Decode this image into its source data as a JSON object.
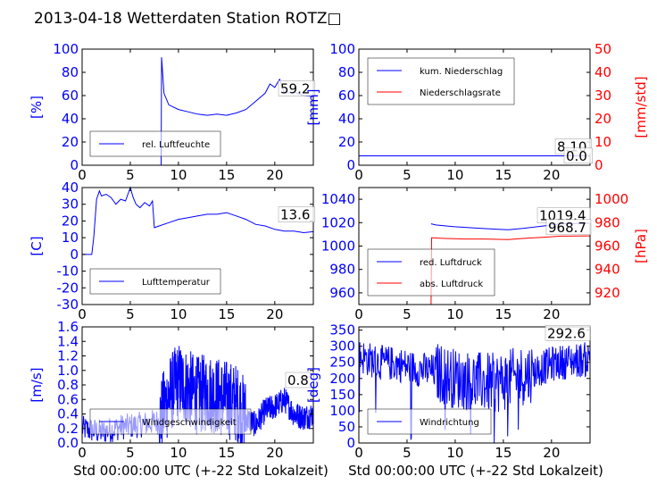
{
  "title": "2013-04-18 Wetterdaten Station ROTZ□",
  "x_label": "Std 00:00:00 UTC (+-22 Std Lokalzeit)",
  "colors": {
    "blue": "#0000ff",
    "red": "#ff0000",
    "black": "#000000"
  },
  "chart_data": [
    {
      "type": "line",
      "panel": "humidity",
      "ylabel": "[%]",
      "xlim": [
        0,
        24
      ],
      "ylim": [
        0,
        100
      ],
      "xticks": [
        0,
        5,
        10,
        15,
        20
      ],
      "yticks": [
        0,
        20,
        40,
        60,
        80,
        100
      ],
      "legend": [
        "rel. Luftfeuchte"
      ],
      "legend_position": "lower-left",
      "value_box": "59.2",
      "series": [
        {
          "name": "rel. Luftfeuchte",
          "color": "blue",
          "points": [
            [
              0,
              0
            ],
            [
              8.2,
              0
            ],
            [
              8.2,
              0
            ],
            [
              8.25,
              93
            ],
            [
              8.5,
              62
            ],
            [
              9,
              52
            ],
            [
              10,
              48
            ],
            [
              11,
              46
            ],
            [
              12,
              44
            ],
            [
              13,
              43
            ],
            [
              14,
              44
            ],
            [
              15,
              43
            ],
            [
              16,
              45
            ],
            [
              17,
              48
            ],
            [
              18,
              55
            ],
            [
              19,
              62
            ],
            [
              19.5,
              70
            ],
            [
              20,
              67
            ],
            [
              20.5,
              74
            ],
            [
              21,
              62
            ],
            [
              22,
              63
            ],
            [
              23,
              60
            ],
            [
              24,
              59.2
            ]
          ]
        }
      ]
    },
    {
      "type": "line",
      "panel": "precipitation",
      "ylabel": "[mm]",
      "ylabel_right": "[mm/std]",
      "xlim": [
        0,
        24
      ],
      "ylim": [
        0,
        100
      ],
      "ylim_right": [
        0,
        50
      ],
      "xticks": [
        0,
        5,
        10,
        15,
        20
      ],
      "yticks": [
        0,
        20,
        40,
        60,
        80,
        100
      ],
      "yticks_right": [
        0,
        10,
        20,
        30,
        40,
        50
      ],
      "legend": [
        "kum. Niederschlag",
        "Niederschlagsrate"
      ],
      "legend_position": "upper-left",
      "value_boxes": [
        "8.10",
        "0.0"
      ],
      "series": [
        {
          "name": "kum. Niederschlag",
          "color": "blue",
          "points": [
            [
              0,
              8.1
            ],
            [
              24,
              8.1
            ]
          ]
        },
        {
          "name": "Niederschlagsrate",
          "color": "red",
          "axis": "right",
          "points": [
            [
              0,
              0
            ],
            [
              24,
              0
            ]
          ]
        }
      ]
    },
    {
      "type": "line",
      "panel": "temperature",
      "ylabel": "[C]",
      "xlim": [
        0,
        24
      ],
      "ylim": [
        -30,
        40
      ],
      "xticks": [
        0,
        5,
        10,
        15,
        20
      ],
      "yticks": [
        -30,
        -20,
        -10,
        0,
        10,
        20,
        30,
        40
      ],
      "legend": [
        "Lufttemperatur"
      ],
      "legend_position": "lower-left",
      "value_box": "13.6",
      "series": [
        {
          "name": "Lufttemperatur",
          "color": "blue",
          "points": [
            [
              0,
              0
            ],
            [
              1,
              0
            ],
            [
              1.2,
              10
            ],
            [
              1.5,
              33
            ],
            [
              1.8,
              38
            ],
            [
              2,
              35
            ],
            [
              2.5,
              36
            ],
            [
              3,
              34
            ],
            [
              3.5,
              30
            ],
            [
              4,
              33
            ],
            [
              4.5,
              32
            ],
            [
              5,
              40
            ],
            [
              5.3,
              34
            ],
            [
              5.6,
              30
            ],
            [
              6,
              28
            ],
            [
              6.5,
              31
            ],
            [
              7,
              29
            ],
            [
              7.3,
              32
            ],
            [
              7.5,
              16
            ],
            [
              8,
              17
            ],
            [
              9,
              19
            ],
            [
              10,
              21
            ],
            [
              11,
              22
            ],
            [
              12,
              23
            ],
            [
              13,
              24
            ],
            [
              14,
              24
            ],
            [
              15,
              25
            ],
            [
              16,
              23
            ],
            [
              17,
              21
            ],
            [
              18,
              18
            ],
            [
              19,
              17
            ],
            [
              20,
              15
            ],
            [
              21,
              14
            ],
            [
              22,
              14
            ],
            [
              23,
              13
            ],
            [
              24,
              13.6
            ]
          ]
        }
      ]
    },
    {
      "type": "line",
      "panel": "pressure",
      "ylabel_right": "[hPa]",
      "xlim": [
        0,
        24
      ],
      "ylim": [
        950,
        1050
      ],
      "ylim_right": [
        910,
        1010
      ],
      "xticks": [
        0,
        5,
        10,
        15,
        20
      ],
      "yticks": [
        960,
        980,
        1000,
        1020,
        1040
      ],
      "yticks_right": [
        920,
        940,
        960,
        980,
        1000
      ],
      "legend": [
        "red. Luftdruck",
        "abs. Luftdruck"
      ],
      "legend_position": "lower-left",
      "value_boxes": [
        "1019.4",
        "968.7"
      ],
      "series": [
        {
          "name": "red. Luftdruck",
          "color": "blue",
          "points": [
            [
              7.5,
              1019
            ],
            [
              8,
              1018
            ],
            [
              10,
              1016.5
            ],
            [
              12,
              1015.5
            ],
            [
              14,
              1014.5
            ],
            [
              15.5,
              1014
            ],
            [
              17,
              1015
            ],
            [
              19,
              1017
            ],
            [
              21,
              1019
            ],
            [
              24,
              1019.4
            ]
          ]
        },
        {
          "name": "abs. Luftdruck",
          "color": "red",
          "axis": "right",
          "points": [
            [
              7.5,
              910
            ],
            [
              7.55,
              967
            ],
            [
              9,
              966.5
            ],
            [
              11,
              966
            ],
            [
              13,
              966
            ],
            [
              15.5,
              965.5
            ],
            [
              17,
              966.5
            ],
            [
              19,
              967.5
            ],
            [
              21,
              968.5
            ],
            [
              24,
              968.7
            ]
          ]
        }
      ]
    },
    {
      "type": "line",
      "panel": "wind_speed",
      "ylabel": "[m/s]",
      "xlim": [
        0,
        24
      ],
      "ylim": [
        0,
        1.6
      ],
      "xticks": [
        0,
        5,
        10,
        15,
        20
      ],
      "yticks": [
        0.0,
        0.2,
        0.4,
        0.6,
        0.8,
        1.0,
        1.2,
        1.4,
        1.6
      ],
      "legend": [
        "Windgeschwindigkeit"
      ],
      "legend_position": "lower-left",
      "value_box": "0.8",
      "series": [
        {
          "name": "Windgeschwindigkeit",
          "color": "blue",
          "noisy": true,
          "points": [
            [
              0,
              0.2
            ],
            [
              2,
              0.15
            ],
            [
              4,
              0.22
            ],
            [
              6,
              0.25
            ],
            [
              8,
              0.3
            ],
            [
              9,
              0.65
            ],
            [
              10,
              0.85
            ],
            [
              11,
              0.75
            ],
            [
              12,
              0.65
            ],
            [
              13,
              0.7
            ],
            [
              14,
              0.65
            ],
            [
              15,
              0.6
            ],
            [
              16,
              0.55
            ],
            [
              17,
              0.35
            ],
            [
              18,
              0.25
            ],
            [
              19,
              0.45
            ],
            [
              20,
              0.5
            ],
            [
              21,
              0.6
            ],
            [
              22,
              0.4
            ],
            [
              23,
              0.35
            ],
            [
              24,
              0.4
            ]
          ]
        }
      ]
    },
    {
      "type": "line",
      "panel": "wind_direction",
      "ylabel": "[deg]",
      "xlim": [
        0,
        24
      ],
      "ylim": [
        0,
        360
      ],
      "xticks": [
        0,
        5,
        10,
        15,
        20
      ],
      "yticks": [
        0,
        50,
        100,
        150,
        200,
        250,
        300,
        350
      ],
      "legend": [
        "Windrichtung"
      ],
      "legend_position": "lower-left",
      "value_box": "292.6",
      "series": [
        {
          "name": "Windrichtung",
          "color": "blue",
          "noisy": true,
          "points": [
            [
              0,
              270
            ],
            [
              2,
              250
            ],
            [
              4,
              245
            ],
            [
              6,
              230
            ],
            [
              8,
              220
            ],
            [
              10,
              200
            ],
            [
              12,
              190
            ],
            [
              14,
              185
            ],
            [
              16,
              200
            ],
            [
              18,
              220
            ],
            [
              20,
              245
            ],
            [
              22,
              255
            ],
            [
              24,
              260
            ]
          ]
        }
      ]
    }
  ]
}
